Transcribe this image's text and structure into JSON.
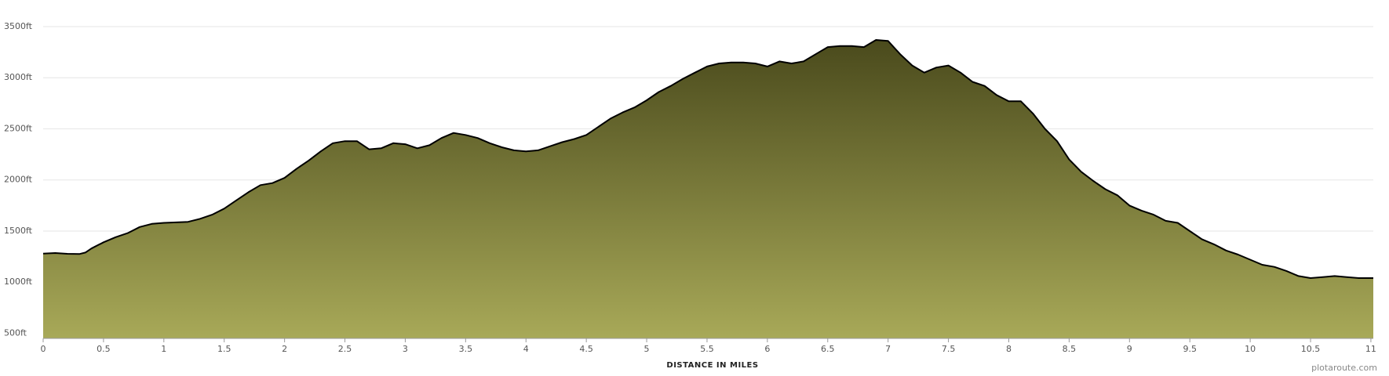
{
  "chart_data": {
    "type": "area",
    "xlabel": "DISTANCE IN MILES",
    "credit": "plotaroute.com",
    "x": [
      0,
      0.1,
      0.2,
      0.3,
      0.35,
      0.4,
      0.5,
      0.6,
      0.7,
      0.8,
      0.9,
      1.0,
      1.1,
      1.2,
      1.3,
      1.4,
      1.5,
      1.6,
      1.7,
      1.8,
      1.9,
      2.0,
      2.1,
      2.2,
      2.3,
      2.4,
      2.5,
      2.6,
      2.7,
      2.8,
      2.9,
      3.0,
      3.1,
      3.2,
      3.3,
      3.4,
      3.5,
      3.6,
      3.7,
      3.8,
      3.9,
      4.0,
      4.1,
      4.2,
      4.3,
      4.4,
      4.5,
      4.6,
      4.7,
      4.8,
      4.9,
      5.0,
      5.1,
      5.2,
      5.3,
      5.4,
      5.5,
      5.6,
      5.7,
      5.8,
      5.9,
      6.0,
      6.1,
      6.2,
      6.3,
      6.4,
      6.5,
      6.6,
      6.7,
      6.8,
      6.9,
      7.0,
      7.1,
      7.2,
      7.3,
      7.4,
      7.5,
      7.6,
      7.7,
      7.8,
      7.9,
      8.0,
      8.1,
      8.2,
      8.3,
      8.4,
      8.5,
      8.6,
      8.7,
      8.8,
      8.9,
      9.0,
      9.1,
      9.2,
      9.3,
      9.4,
      9.5,
      9.6,
      9.7,
      9.8,
      9.9,
      10.0,
      10.1,
      10.2,
      10.3,
      10.4,
      10.5,
      10.6,
      10.7,
      10.8,
      10.9,
      11.0,
      11.02
    ],
    "series": [
      {
        "color": "#000000",
        "values": [
          1280,
          1285,
          1278,
          1275,
          1290,
          1330,
          1390,
          1440,
          1480,
          1540,
          1570,
          1580,
          1585,
          1590,
          1620,
          1660,
          1720,
          1800,
          1880,
          1950,
          1970,
          2020,
          2110,
          2190,
          2280,
          2360,
          2380,
          2380,
          2300,
          2310,
          2360,
          2350,
          2310,
          2340,
          2410,
          2460,
          2440,
          2410,
          2360,
          2320,
          2290,
          2280,
          2290,
          2330,
          2370,
          2400,
          2440,
          2520,
          2600,
          2660,
          2710,
          2780,
          2860,
          2920,
          2990,
          3050,
          3110,
          3140,
          3150,
          3150,
          3140,
          3110,
          3160,
          3140,
          3160,
          3230,
          3300,
          3310,
          3310,
          3300,
          3370,
          3360,
          3230,
          3120,
          3050,
          3100,
          3120,
          3050,
          2960,
          2920,
          2830,
          2770,
          2770,
          2650,
          2500,
          2380,
          2200,
          2080,
          1990,
          1910,
          1850,
          1750,
          1700,
          1660,
          1600,
          1580,
          1500,
          1420,
          1370,
          1310,
          1270,
          1220,
          1170,
          1150,
          1110,
          1060,
          1040,
          1050,
          1060,
          1050,
          1040,
          1040,
          1040
        ]
      }
    ],
    "fill_top": "#4a4a1c",
    "fill_bottom": "#a8a958",
    "xlim": [
      0,
      11.02
    ],
    "ylim": [
      450,
      3500
    ],
    "xticks": [
      0,
      0.5,
      1,
      1.5,
      2,
      2.5,
      3,
      3.5,
      4,
      4.5,
      5,
      5.5,
      6,
      6.5,
      7,
      7.5,
      8,
      8.5,
      9,
      9.5,
      10,
      10.5,
      11
    ],
    "yticks": [
      {
        "value": 500,
        "label": "500ft"
      },
      {
        "value": 1000,
        "label": "1000ft"
      },
      {
        "value": 1500,
        "label": "1500ft"
      },
      {
        "value": 2000,
        "label": "2000ft"
      },
      {
        "value": 2500,
        "label": "2500ft"
      },
      {
        "value": 3000,
        "label": "3000ft"
      },
      {
        "value": 3500,
        "label": "3500ft"
      }
    ],
    "grid": true
  }
}
